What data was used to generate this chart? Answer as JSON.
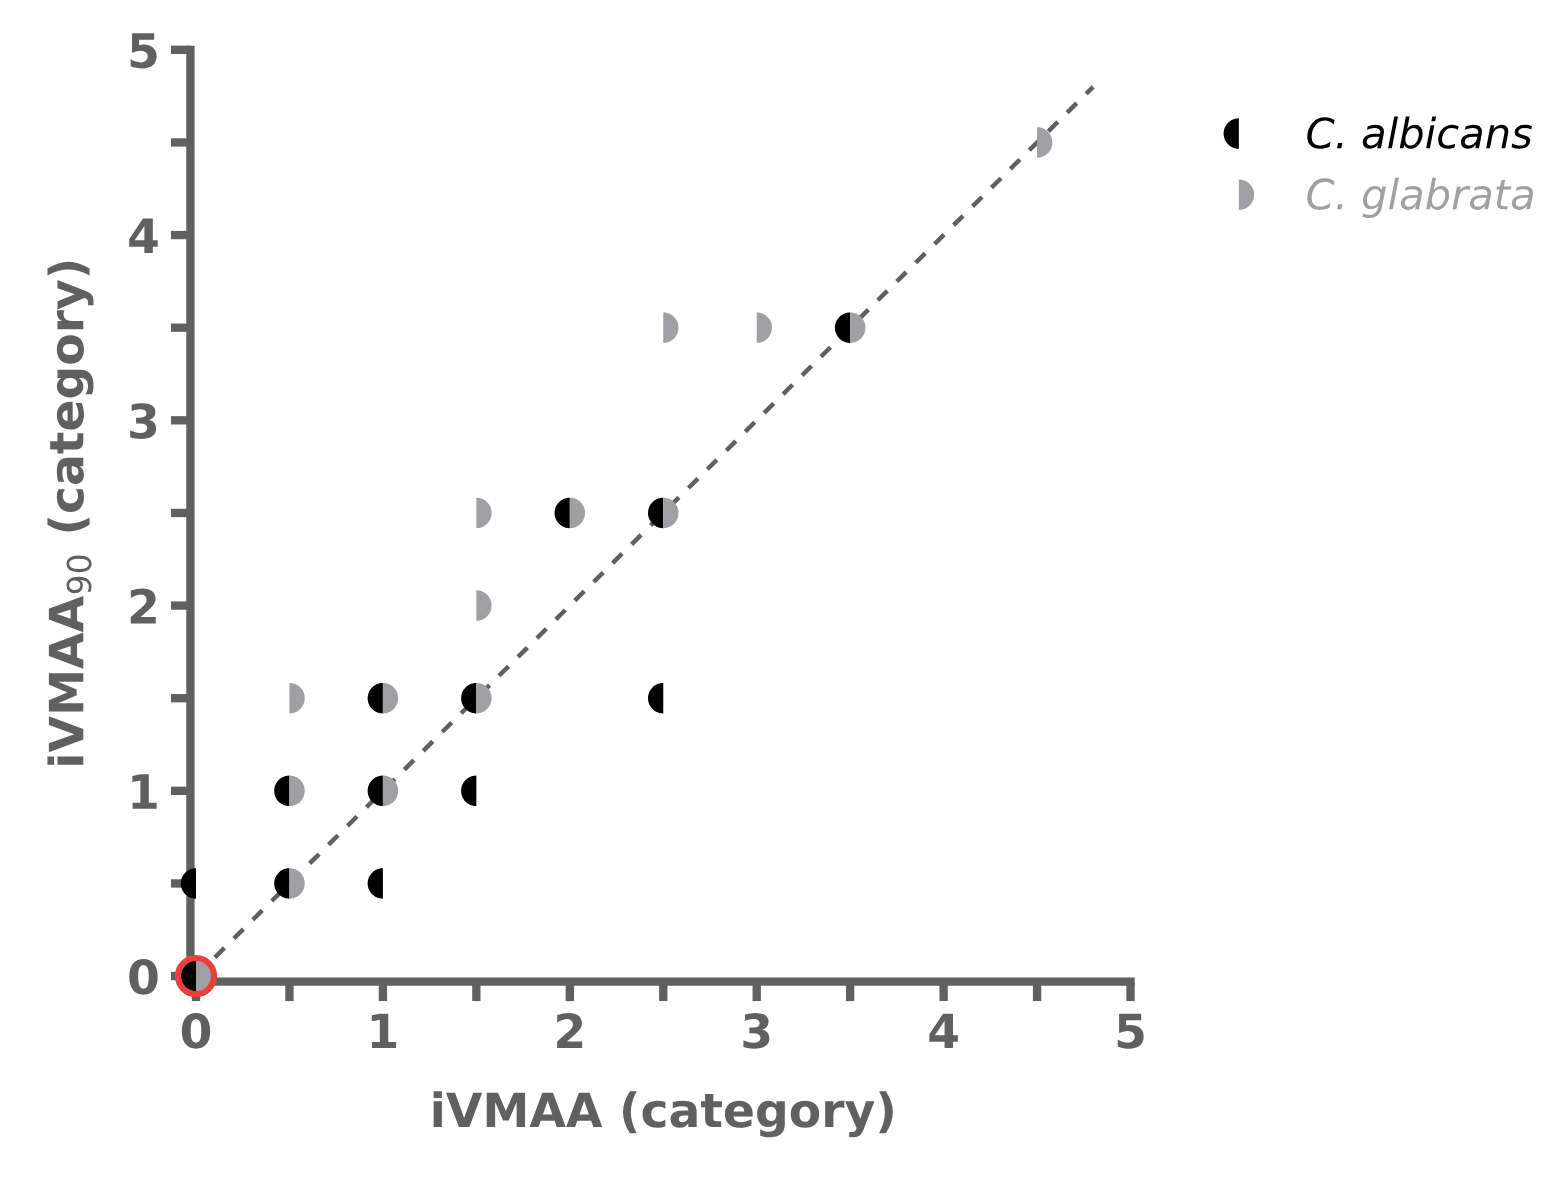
{
  "chart_data": {
    "type": "scatter",
    "xlabel": "iVMAA (category)",
    "ylabel": "iVMAA$_{90}$ (category)",
    "xlim": [
      0,
      5
    ],
    "ylim": [
      0,
      5
    ],
    "xticks": [
      0,
      {
        "value": 0.5,
        "label": null
      },
      1,
      {
        "value": 1.5,
        "label": null
      },
      2,
      {
        "value": 2.5,
        "label": null
      },
      3,
      {
        "value": 3.5,
        "label": null
      },
      4,
      {
        "value": 4.5,
        "label": null
      },
      5
    ],
    "yticks": [
      0,
      {
        "value": 0.5,
        "label": null
      },
      1,
      {
        "value": 1.5,
        "label": null
      },
      2,
      {
        "value": 2.5,
        "label": null
      },
      3,
      {
        "value": 3.5,
        "label": null
      },
      4,
      {
        "value": 4.5,
        "label": null
      },
      5
    ],
    "grid": false,
    "legend": "top right",
    "series": [
      {
        "name": "C. albicans",
        "color": "#000000",
        "x": [
          0,
          0,
          0.5,
          1,
          0.5,
          1,
          1.5,
          1,
          1.5,
          2.5,
          2,
          2.5,
          3.5
        ],
        "values": [
          0,
          0.5,
          0.5,
          0.5,
          1,
          1,
          1,
          1.5,
          1.5,
          1.5,
          2.5,
          2.5,
          3.5
        ]
      },
      {
        "name": "C. glabrata",
        "color": "#a0a0a4",
        "x": [
          0,
          0.5,
          0.5,
          1,
          0.5,
          1,
          1.5,
          1.5,
          1.5,
          2,
          2.5,
          2.5,
          3,
          3.5,
          4.5
        ],
        "values": [
          0,
          0.5,
          1,
          1,
          1.5,
          1.5,
          1.5,
          2,
          2.5,
          2.5,
          2.5,
          3.5,
          3.5,
          3.5,
          4.5
        ]
      },
      {
        "type": "line",
        "color": "#606060",
        "line_style": "dashed",
        "marker": "none",
        "x": [
          0,
          4.8
        ],
        "values": [
          0,
          4.8
        ]
      },
      {
        "color": "#e8403a",
        "x": [
          0
        ],
        "values": [
          0
        ]
      }
    ]
  }
}
